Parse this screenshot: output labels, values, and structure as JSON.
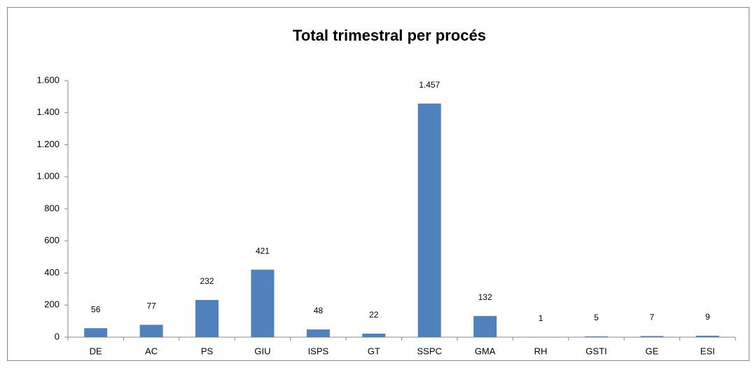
{
  "chart_data": {
    "type": "bar",
    "title": "Total trimestral per procés",
    "categories": [
      "DE",
      "AC",
      "PS",
      "GIU",
      "ISPS",
      "GT",
      "SSPC",
      "GMA",
      "RH",
      "GSTI",
      "GE",
      "ESI"
    ],
    "values": [
      56,
      77,
      232,
      421,
      48,
      22,
      1457,
      132,
      1,
      5,
      7,
      9
    ],
    "value_labels": [
      "56",
      "77",
      "232",
      "421",
      "48",
      "22",
      "1.457",
      "132",
      "1",
      "5",
      "7",
      "9"
    ],
    "color": "#4f81bd",
    "ylim": [
      0,
      1600
    ],
    "yticks": [
      0,
      200,
      400,
      600,
      800,
      {
        "value": 1000,
        "label": "1.000"
      },
      {
        "value": 1200,
        "label": "1.200"
      },
      {
        "value": 1400,
        "label": "1.400"
      },
      {
        "value": 1600,
        "label": "1.600"
      }
    ],
    "grid": false
  }
}
